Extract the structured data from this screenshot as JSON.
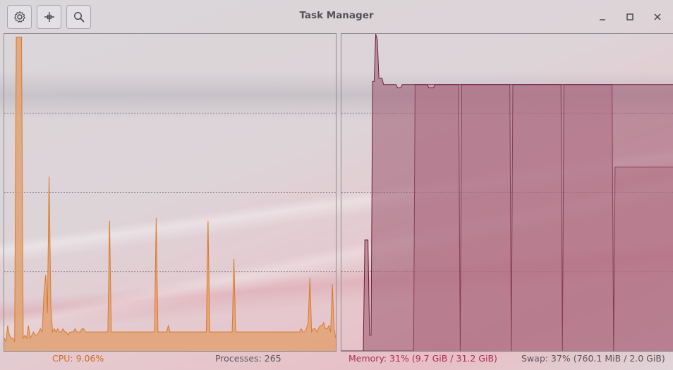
{
  "window": {
    "title": "Task Manager"
  },
  "toolbar": {
    "buttons": [
      {
        "name": "settings-button",
        "icon": "gear-icon"
      },
      {
        "name": "add-button",
        "icon": "plus-icon"
      },
      {
        "name": "search-button",
        "icon": "search-icon"
      }
    ]
  },
  "window_controls": {
    "minimize": "minimize-icon",
    "maximize": "maximize-icon",
    "close": "close-icon"
  },
  "colors": {
    "cpu": "#d97a2b",
    "cpu_fill": "#e1a274",
    "memory": "#6a1e3c",
    "memory_fill": "#9c5870",
    "swap_fill": "#c98ea0",
    "cpu_text": "#d06a1c",
    "memory_text": "#b02a5a",
    "processes_text": "#5a575c",
    "swap_text": "#5a575c"
  },
  "status": {
    "cpu": "CPU: 9.06%",
    "processes": "Processes: 265",
    "memory": "Memory: 31% (9.7 GiB / 31.2 GiB)",
    "swap": "Swap: 37% (760.1 MiB / 2.0 GiB)"
  },
  "chart_data": [
    {
      "type": "area",
      "series": [
        {
          "name": "CPU",
          "values": [
            4,
            3,
            8,
            5,
            4,
            4,
            3,
            99,
            99,
            99,
            99,
            4,
            5,
            4,
            8,
            4,
            5,
            6,
            5,
            5,
            6,
            7,
            6,
            18,
            24,
            12,
            55,
            14,
            6,
            7,
            6,
            7,
            6,
            6,
            7,
            6,
            6,
            5,
            6,
            6,
            6,
            7,
            6,
            6,
            6,
            7,
            7,
            6,
            6,
            6,
            6,
            6,
            6,
            6,
            6,
            6,
            6,
            6,
            6,
            6,
            6,
            41,
            6,
            6,
            6,
            6,
            6,
            6,
            6,
            6,
            6,
            6,
            6,
            6,
            6,
            6,
            6,
            6,
            6,
            6,
            6,
            6,
            6,
            6,
            6,
            6,
            6,
            6,
            42,
            6,
            6,
            6,
            6,
            6,
            6,
            8,
            6,
            6,
            6,
            6,
            6,
            6,
            6,
            6,
            6,
            6,
            6,
            6,
            6,
            6,
            6,
            6,
            6,
            6,
            6,
            6,
            6,
            6,
            41,
            6,
            6,
            6,
            6,
            6,
            6,
            6,
            6,
            6,
            6,
            6,
            6,
            6,
            6,
            29,
            6,
            6,
            6,
            6,
            6,
            6,
            6,
            6,
            6,
            6,
            6,
            6,
            6,
            6,
            6,
            6,
            6,
            6,
            6,
            6,
            6,
            6,
            6,
            6,
            6,
            6,
            6,
            6,
            6,
            6,
            6,
            6,
            6,
            6,
            6,
            6,
            6,
            6,
            7,
            6,
            6,
            7,
            9,
            23,
            6,
            7,
            7,
            6,
            7,
            8,
            8,
            9,
            7,
            7,
            8,
            6,
            21,
            7,
            4
          ]
        }
      ],
      "ylim": [
        0,
        100
      ],
      "grid": true
    },
    {
      "type": "area",
      "series": [
        {
          "name": "Memory",
          "values": [
            0,
            0,
            0,
            0,
            0,
            0,
            0,
            0,
            0,
            0,
            0,
            0,
            0,
            0,
            0,
            35,
            35,
            35,
            5,
            5,
            85,
            85,
            100,
            98,
            86,
            86,
            86,
            84,
            84,
            84,
            84,
            84,
            84,
            84,
            84,
            84,
            83,
            83,
            83,
            84,
            84,
            84,
            84,
            84,
            84,
            84,
            84,
            84,
            84,
            84,
            84,
            84,
            84,
            84,
            84,
            84,
            83,
            83,
            83,
            83,
            84,
            84,
            84,
            84,
            84,
            84,
            84,
            84,
            84,
            84,
            84,
            84,
            84,
            84,
            84,
            84,
            84,
            84,
            84,
            84,
            84,
            84,
            84,
            84,
            84,
            84,
            84,
            84,
            84,
            84,
            84,
            84,
            84,
            84,
            84,
            84,
            84,
            84,
            84,
            84,
            84,
            84,
            84,
            84,
            84,
            84,
            84,
            84,
            84,
            84,
            84,
            84,
            84,
            84,
            84,
            84,
            84,
            84,
            84,
            84,
            84,
            84,
            84,
            84,
            84,
            84,
            84,
            84,
            84,
            84,
            84,
            84,
            84,
            84,
            84,
            84,
            84,
            84,
            84,
            84,
            84,
            84,
            84,
            84,
            84,
            84,
            84,
            84,
            84,
            84,
            84,
            84,
            84,
            84,
            84,
            84,
            84,
            84,
            84,
            84,
            84,
            84,
            84,
            84,
            84,
            84,
            84,
            84,
            84,
            84,
            84,
            84,
            84,
            84,
            84,
            84,
            84,
            84,
            84,
            84,
            84,
            84,
            84,
            84,
            84,
            84,
            84,
            84,
            84,
            84,
            84,
            84,
            84,
            84,
            84,
            84,
            84,
            84,
            84,
            84,
            84,
            84,
            84,
            84,
            84,
            84,
            84,
            84,
            84,
            84,
            84,
            84,
            84,
            84
          ]
        },
        {
          "name": "Swap",
          "values": [
            0,
            0,
            0,
            0,
            0,
            0,
            0,
            0,
            0,
            0,
            0,
            0,
            0,
            0,
            0,
            0,
            0,
            0,
            0,
            0,
            0,
            0,
            0,
            0,
            0,
            0,
            0,
            0,
            0,
            0,
            0,
            0,
            0,
            0,
            0,
            0,
            0,
            0,
            0,
            0,
            0,
            0,
            0,
            0,
            0,
            0,
            0,
            0,
            0,
            84,
            84,
            84,
            84,
            84,
            84,
            84,
            84,
            84,
            84,
            84,
            84,
            84,
            84,
            84,
            84,
            84,
            84,
            84,
            84,
            84,
            84,
            84,
            84,
            84,
            84,
            84,
            84,
            84,
            84,
            0,
            84,
            84,
            84,
            84,
            84,
            84,
            84,
            84,
            84,
            84,
            84,
            84,
            84,
            84,
            84,
            84,
            84,
            84,
            84,
            84,
            84,
            84,
            84,
            84,
            84,
            84,
            84,
            84,
            84,
            84,
            84,
            84,
            84,
            0,
            84,
            84,
            84,
            84,
            84,
            84,
            84,
            84,
            84,
            84,
            84,
            84,
            84,
            84,
            84,
            84,
            84,
            84,
            84,
            84,
            84,
            84,
            84,
            84,
            84,
            84,
            84,
            84,
            84,
            84,
            84,
            84,
            84,
            0,
            84,
            84,
            84,
            84,
            84,
            84,
            84,
            84,
            84,
            84,
            84,
            84,
            84,
            84,
            84,
            84,
            84,
            84,
            84,
            84,
            84,
            84,
            84,
            84,
            84,
            84,
            84,
            84,
            84,
            84,
            84,
            84,
            84,
            0,
            58,
            58,
            58,
            58,
            58,
            58,
            58,
            58,
            58,
            58,
            58,
            58,
            58,
            58,
            58,
            58,
            58,
            58,
            58,
            58,
            58,
            58,
            58,
            58,
            58,
            58,
            58,
            58,
            58,
            58,
            58,
            58,
            58,
            58,
            58,
            58,
            58,
            58,
            58,
            58
          ]
        }
      ],
      "ylim": [
        0,
        100
      ],
      "grid": true
    }
  ]
}
